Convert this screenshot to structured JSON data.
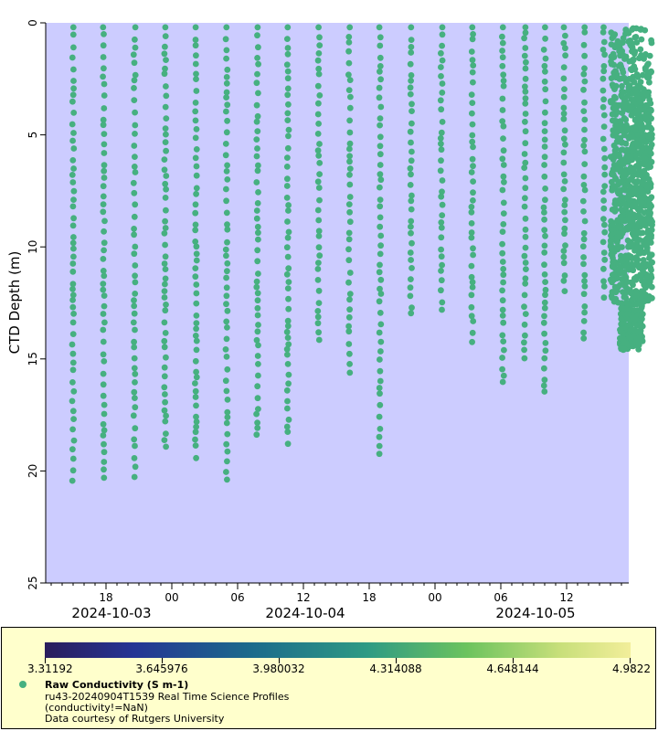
{
  "chart_data": {
    "type": "scatter",
    "ylabel": "CTD Depth (m)",
    "ylim": [
      25,
      0
    ],
    "y_ticks": [
      "0",
      "5",
      "10",
      "15",
      "20",
      "25"
    ],
    "x_hour_ticks": [
      "18",
      "00",
      "06",
      "12",
      "18",
      "00",
      "06",
      "12"
    ],
    "x_date_labels": [
      "2024-10-03",
      "2024-10-04",
      "2024-10-05"
    ],
    "marker_color": "#46b080",
    "background_color": "#ccccff",
    "profiles": [
      {
        "time_h": 15.0,
        "max_depth": 20.5
      },
      {
        "time_h": 17.8,
        "max_depth": 20.6
      },
      {
        "time_h": 20.6,
        "max_depth": 20.6
      },
      {
        "time_h": 23.4,
        "max_depth": 19.1
      },
      {
        "time_h": 26.2,
        "max_depth": 19.6
      },
      {
        "time_h": 29.0,
        "max_depth": 20.4
      },
      {
        "time_h": 31.8,
        "max_depth": 18.5
      },
      {
        "time_h": 34.6,
        "max_depth": 19.0
      },
      {
        "time_h": 37.4,
        "max_depth": 14.2
      },
      {
        "time_h": 40.2,
        "max_depth": 16.0
      },
      {
        "time_h": 43.0,
        "max_depth": 19.3
      },
      {
        "time_h": 45.8,
        "max_depth": 13.3
      },
      {
        "time_h": 48.6,
        "max_depth": 13.0
      },
      {
        "time_h": 51.4,
        "max_depth": 14.6
      },
      {
        "time_h": 54.2,
        "max_depth": 16.1
      },
      {
        "time_h": 56.2,
        "max_depth": 15.0
      },
      {
        "time_h": 58.0,
        "max_depth": 16.5
      },
      {
        "time_h": 59.8,
        "max_depth": 12.3
      },
      {
        "time_h": 61.6,
        "max_depth": 14.6
      },
      {
        "time_h": 63.4,
        "max_depth": 12.4
      }
    ],
    "dense_block": {
      "time_start_h": 64.0,
      "time_end_h": 67.8,
      "depth_min": 0.2,
      "depth_max": 14.6,
      "dense_from_depth": 2.8
    }
  },
  "colorbar": {
    "labels": [
      "3.31192",
      "3.645976",
      "3.980032",
      "4.314088",
      "4.648144",
      "4.9822"
    ],
    "min_color": "#2a1d5c",
    "max_color": "#f2ee9a"
  },
  "legend": {
    "title": "Raw Conductivity (S m-1)",
    "line1": "ru43-20240904T1539 Real Time Science Profiles",
    "line2": "(conductivity!=NaN)",
    "line3": "Data courtesy of Rutgers University"
  }
}
